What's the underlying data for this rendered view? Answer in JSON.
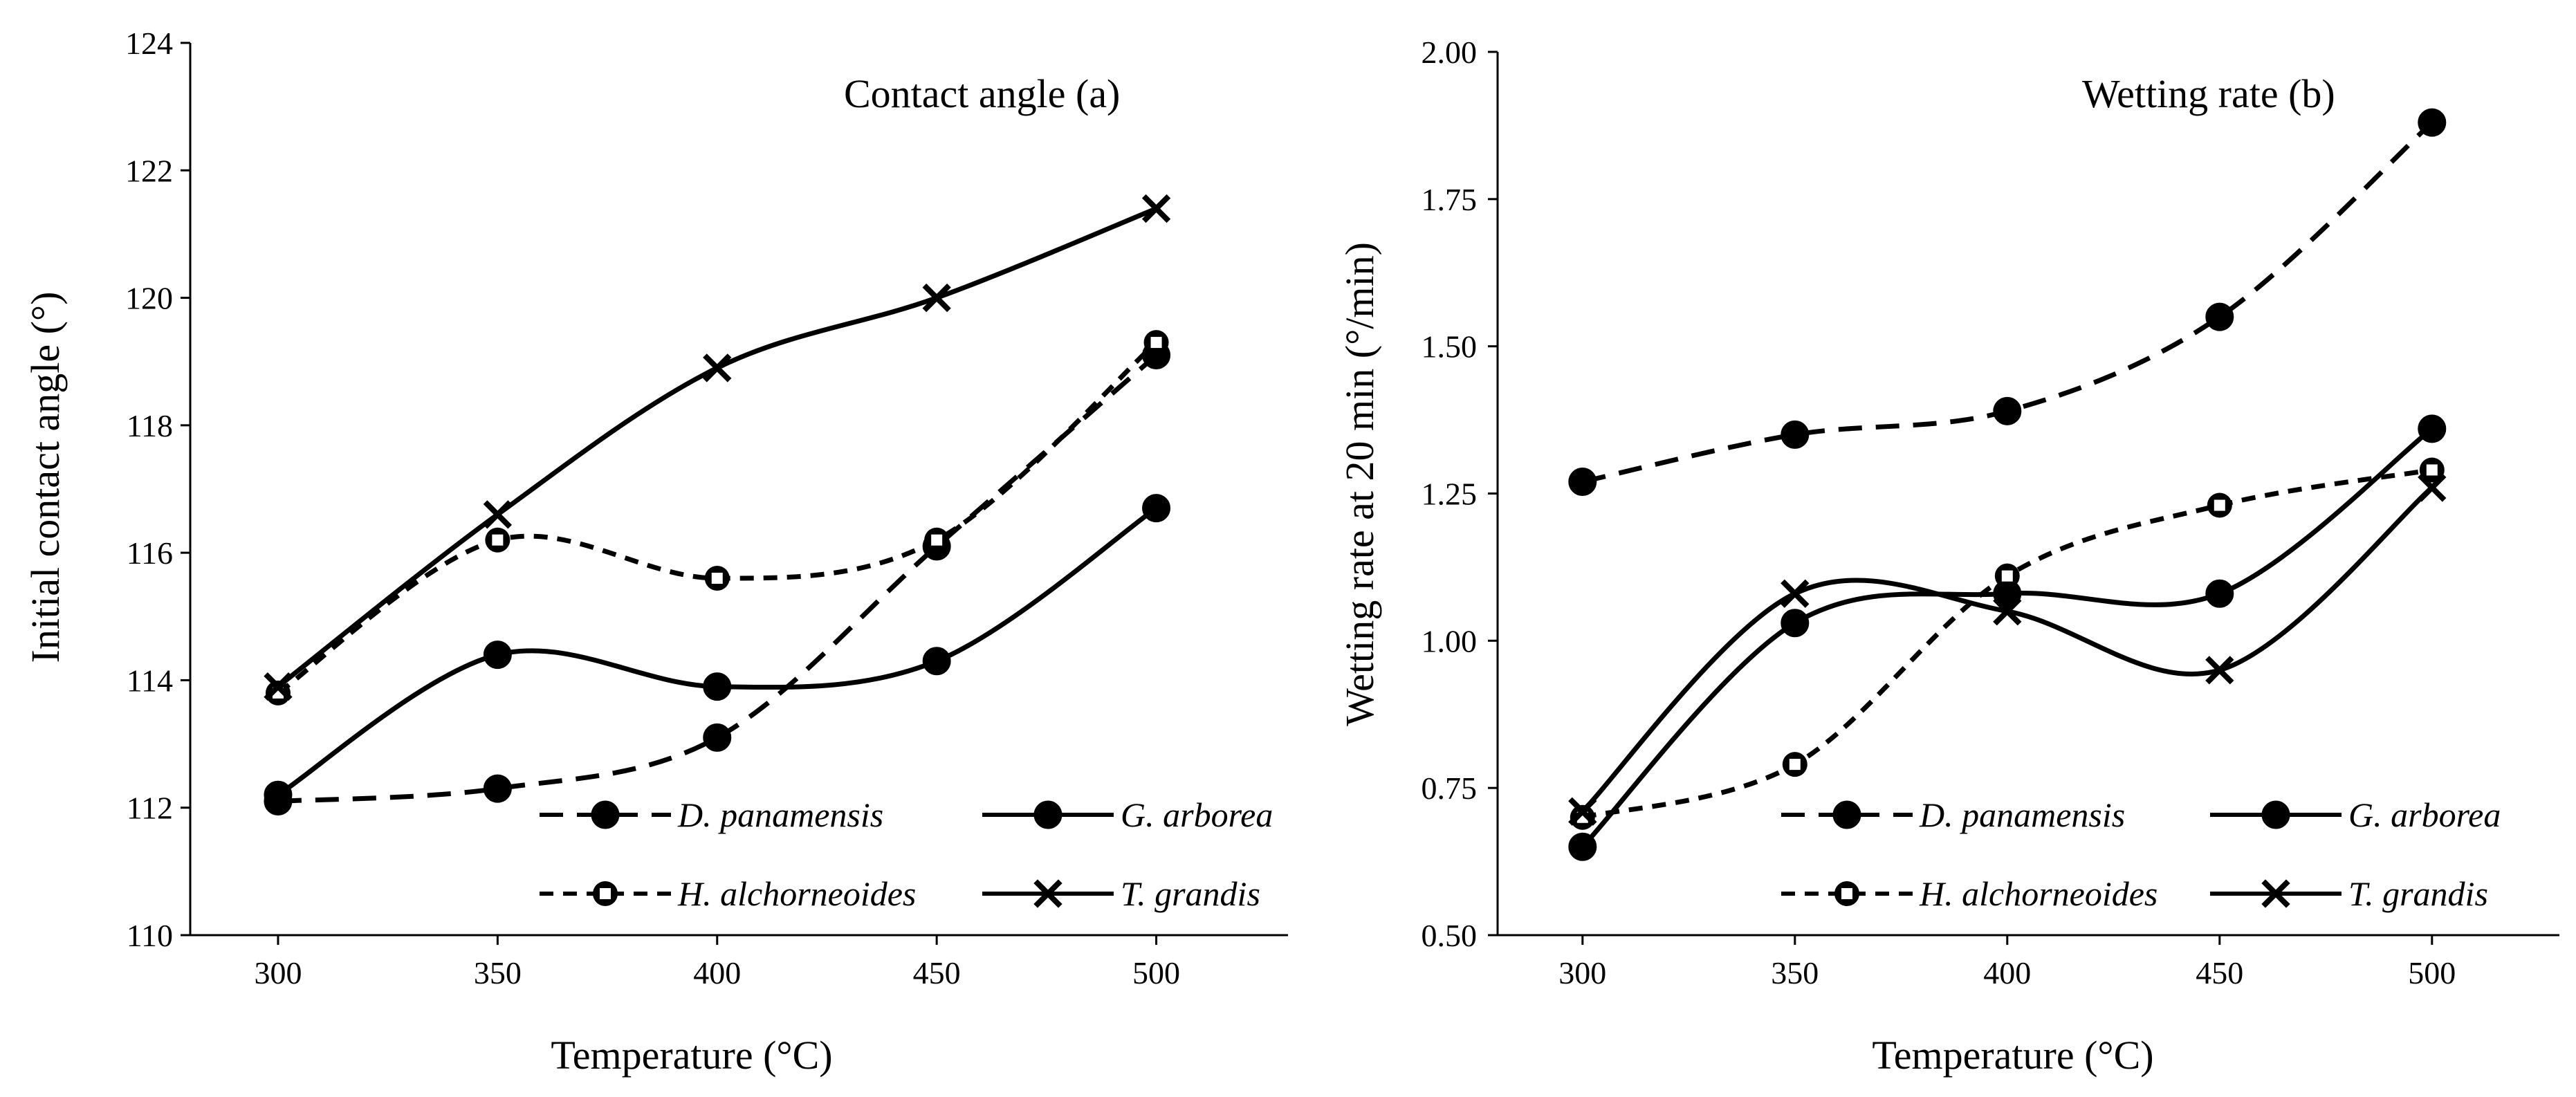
{
  "figure": {
    "caption": ""
  },
  "chart_data": [
    {
      "type": "line",
      "title": "Contact angle (a)",
      "xlabel": "Temperature (°C)",
      "ylabel": "Initial contact angle (°)",
      "x": [
        300,
        350,
        400,
        450,
        500
      ],
      "xlim": [
        280,
        530
      ],
      "ylim": [
        110,
        124
      ],
      "xticks": [
        "300",
        "350",
        "400",
        "450",
        "500"
      ],
      "yticks": [
        "110",
        "112",
        "114",
        "116",
        "118",
        "120",
        "122",
        "124"
      ],
      "legend_position": "bottom-right",
      "series": [
        {
          "name": "D. panamensis",
          "marker": "filled-circle",
          "dash": "dashed",
          "values": [
            112.1,
            112.3,
            113.1,
            116.1,
            119.1
          ]
        },
        {
          "name": "G. arborea",
          "marker": "filled-circle",
          "dash": "solid",
          "values": [
            112.2,
            114.4,
            113.9,
            114.3,
            116.7
          ]
        },
        {
          "name": "H. alchorneoides",
          "marker": "open-square-circle",
          "dash": "short-dashed",
          "values": [
            113.8,
            116.2,
            115.6,
            116.2,
            119.3
          ]
        },
        {
          "name": "T. grandis",
          "marker": "x",
          "dash": "solid",
          "values": [
            113.9,
            116.6,
            118.9,
            120.0,
            121.4
          ]
        }
      ]
    },
    {
      "type": "line",
      "title": "Wetting rate (b)",
      "xlabel": "Temperature (°C)",
      "ylabel": "Wetting rate at 20 min (°/min)",
      "x": [
        300,
        350,
        400,
        450,
        500
      ],
      "xlim": [
        280,
        530
      ],
      "ylim": [
        0.5,
        2.0
      ],
      "xticks": [
        "300",
        "350",
        "400",
        "450",
        "500"
      ],
      "yticks": [
        "0.50",
        "0.75",
        "1.00",
        "1.25",
        "1.50",
        "1.75",
        "2.00"
      ],
      "legend_position": "bottom-right",
      "series": [
        {
          "name": "D. panamensis",
          "marker": "filled-circle",
          "dash": "dashed",
          "values": [
            1.27,
            1.35,
            1.39,
            1.55,
            1.88
          ]
        },
        {
          "name": "G. arborea",
          "marker": "filled-circle",
          "dash": "solid",
          "values": [
            0.65,
            1.03,
            1.08,
            1.08,
            1.36
          ]
        },
        {
          "name": "H. alchorneoides",
          "marker": "open-square-circle",
          "dash": "short-dashed",
          "values": [
            0.7,
            0.79,
            1.11,
            1.23,
            1.29
          ]
        },
        {
          "name": "T. grandis",
          "marker": "x",
          "dash": "solid",
          "values": [
            0.71,
            1.08,
            1.05,
            0.95,
            1.26
          ]
        }
      ]
    }
  ],
  "colors": {
    "ink": "#000000",
    "background": "#ffffff"
  }
}
